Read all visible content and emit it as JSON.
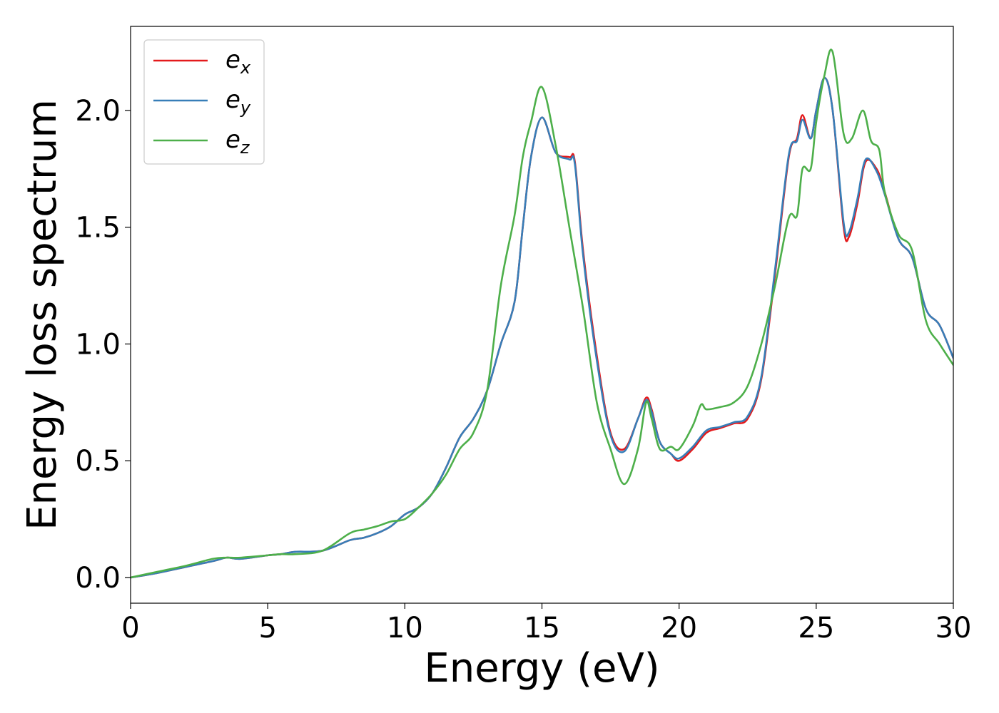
{
  "chart_data": {
    "type": "line",
    "title": "",
    "xlabel": "Energy (eV)",
    "ylabel": "Energy loss spectrum",
    "xlim": [
      0,
      30
    ],
    "ylim": [
      -0.11,
      2.36
    ],
    "xticks": [
      0,
      5,
      10,
      15,
      20,
      25,
      30
    ],
    "xtick_labels": [
      "0",
      "5",
      "10",
      "15",
      "20",
      "25",
      "30"
    ],
    "yticks": [
      0.0,
      0.5,
      1.0,
      1.5,
      2.0
    ],
    "ytick_labels": [
      "0.0",
      "0.5",
      "1.0",
      "1.5",
      "2.0"
    ],
    "grid": false,
    "legend": {
      "position": "top-left",
      "entries": [
        {
          "base": "e",
          "sub": "x",
          "color": "#e41a1c"
        },
        {
          "base": "e",
          "sub": "y",
          "color": "#377eb8"
        },
        {
          "base": "e",
          "sub": "z",
          "color": "#4daf4a"
        }
      ]
    },
    "series": [
      {
        "color": "#e41a1c",
        "points": [
          [
            0,
            0
          ],
          [
            1,
            0.02
          ],
          [
            2,
            0.045
          ],
          [
            3,
            0.07
          ],
          [
            3.5,
            0.085
          ],
          [
            4,
            0.08
          ],
          [
            5,
            0.095
          ],
          [
            5.5,
            0.1
          ],
          [
            6,
            0.11
          ],
          [
            7,
            0.115
          ],
          [
            8,
            0.16
          ],
          [
            8.5,
            0.17
          ],
          [
            9,
            0.19
          ],
          [
            9.5,
            0.22
          ],
          [
            10,
            0.27
          ],
          [
            10.5,
            0.3
          ],
          [
            11,
            0.36
          ],
          [
            11.5,
            0.47
          ],
          [
            12,
            0.6
          ],
          [
            12.5,
            0.68
          ],
          [
            13,
            0.8
          ],
          [
            13.5,
            1.0
          ],
          [
            14,
            1.18
          ],
          [
            14.3,
            1.5
          ],
          [
            14.6,
            1.8
          ],
          [
            15,
            1.97
          ],
          [
            15.5,
            1.82
          ],
          [
            16,
            1.8
          ],
          [
            16.2,
            1.78
          ],
          [
            16.5,
            1.4
          ],
          [
            17,
            0.95
          ],
          [
            17.5,
            0.62
          ],
          [
            18,
            0.55
          ],
          [
            18.5,
            0.68
          ],
          [
            18.8,
            0.77
          ],
          [
            19,
            0.72
          ],
          [
            19.3,
            0.58
          ],
          [
            19.7,
            0.53
          ],
          [
            20,
            0.5
          ],
          [
            20.5,
            0.55
          ],
          [
            21,
            0.62
          ],
          [
            21.5,
            0.64
          ],
          [
            22,
            0.66
          ],
          [
            22.5,
            0.68
          ],
          [
            23,
            0.85
          ],
          [
            23.5,
            1.3
          ],
          [
            24,
            1.8
          ],
          [
            24.3,
            1.88
          ],
          [
            24.5,
            1.98
          ],
          [
            24.8,
            1.88
          ],
          [
            25,
            2.0
          ],
          [
            25.3,
            2.14
          ],
          [
            25.6,
            2.0
          ],
          [
            26,
            1.5
          ],
          [
            26.2,
            1.46
          ],
          [
            26.5,
            1.6
          ],
          [
            26.8,
            1.78
          ],
          [
            27.2,
            1.75
          ],
          [
            27.5,
            1.65
          ],
          [
            28,
            1.45
          ],
          [
            28.5,
            1.37
          ],
          [
            29,
            1.15
          ],
          [
            29.5,
            1.08
          ],
          [
            30,
            0.94
          ]
        ]
      },
      {
        "color": "#377eb8",
        "points": [
          [
            0,
            0
          ],
          [
            1,
            0.02
          ],
          [
            2,
            0.045
          ],
          [
            3,
            0.07
          ],
          [
            3.5,
            0.085
          ],
          [
            4,
            0.08
          ],
          [
            5,
            0.095
          ],
          [
            5.5,
            0.1
          ],
          [
            6,
            0.11
          ],
          [
            7,
            0.115
          ],
          [
            8,
            0.16
          ],
          [
            8.5,
            0.17
          ],
          [
            9,
            0.19
          ],
          [
            9.5,
            0.22
          ],
          [
            10,
            0.27
          ],
          [
            10.5,
            0.3
          ],
          [
            11,
            0.36
          ],
          [
            11.5,
            0.47
          ],
          [
            12,
            0.6
          ],
          [
            12.5,
            0.68
          ],
          [
            13,
            0.8
          ],
          [
            13.5,
            1.0
          ],
          [
            14,
            1.18
          ],
          [
            14.3,
            1.5
          ],
          [
            14.6,
            1.8
          ],
          [
            15,
            1.97
          ],
          [
            15.5,
            1.82
          ],
          [
            16,
            1.79
          ],
          [
            16.2,
            1.77
          ],
          [
            16.5,
            1.38
          ],
          [
            17,
            0.93
          ],
          [
            17.5,
            0.61
          ],
          [
            18,
            0.54
          ],
          [
            18.5,
            0.68
          ],
          [
            18.8,
            0.76
          ],
          [
            19,
            0.71
          ],
          [
            19.3,
            0.58
          ],
          [
            19.7,
            0.53
          ],
          [
            20,
            0.51
          ],
          [
            20.5,
            0.56
          ],
          [
            21,
            0.63
          ],
          [
            21.5,
            0.645
          ],
          [
            22,
            0.665
          ],
          [
            22.5,
            0.69
          ],
          [
            23,
            0.86
          ],
          [
            23.5,
            1.32
          ],
          [
            24,
            1.81
          ],
          [
            24.3,
            1.87
          ],
          [
            24.5,
            1.96
          ],
          [
            24.8,
            1.88
          ],
          [
            25,
            2.0
          ],
          [
            25.3,
            2.14
          ],
          [
            25.6,
            2.0
          ],
          [
            26,
            1.52
          ],
          [
            26.2,
            1.48
          ],
          [
            26.5,
            1.62
          ],
          [
            26.8,
            1.79
          ],
          [
            27.2,
            1.74
          ],
          [
            27.5,
            1.64
          ],
          [
            28,
            1.45
          ],
          [
            28.5,
            1.37
          ],
          [
            29,
            1.15
          ],
          [
            29.5,
            1.08
          ],
          [
            30,
            0.94
          ]
        ]
      },
      {
        "color": "#4daf4a",
        "points": [
          [
            0,
            0
          ],
          [
            1,
            0.025
          ],
          [
            2,
            0.05
          ],
          [
            3,
            0.08
          ],
          [
            3.5,
            0.085
          ],
          [
            4,
            0.085
          ],
          [
            5,
            0.095
          ],
          [
            5.5,
            0.1
          ],
          [
            6,
            0.1
          ],
          [
            7,
            0.115
          ],
          [
            8,
            0.19
          ],
          [
            8.5,
            0.205
          ],
          [
            9,
            0.22
          ],
          [
            9.5,
            0.24
          ],
          [
            10,
            0.25
          ],
          [
            10.5,
            0.3
          ],
          [
            11,
            0.36
          ],
          [
            11.5,
            0.44
          ],
          [
            12,
            0.55
          ],
          [
            12.5,
            0.62
          ],
          [
            13,
            0.8
          ],
          [
            13.5,
            1.25
          ],
          [
            14,
            1.55
          ],
          [
            14.3,
            1.8
          ],
          [
            14.6,
            1.95
          ],
          [
            15,
            2.1
          ],
          [
            15.5,
            1.85
          ],
          [
            16,
            1.5
          ],
          [
            16.5,
            1.15
          ],
          [
            17,
            0.75
          ],
          [
            17.5,
            0.55
          ],
          [
            18,
            0.4
          ],
          [
            18.5,
            0.55
          ],
          [
            18.8,
            0.75
          ],
          [
            19,
            0.68
          ],
          [
            19.3,
            0.55
          ],
          [
            19.7,
            0.56
          ],
          [
            20,
            0.55
          ],
          [
            20.5,
            0.65
          ],
          [
            20.8,
            0.74
          ],
          [
            21,
            0.72
          ],
          [
            21.5,
            0.73
          ],
          [
            22,
            0.75
          ],
          [
            22.5,
            0.82
          ],
          [
            23,
            1.0
          ],
          [
            23.5,
            1.25
          ],
          [
            24,
            1.54
          ],
          [
            24.3,
            1.55
          ],
          [
            24.5,
            1.75
          ],
          [
            24.8,
            1.75
          ],
          [
            25,
            1.95
          ],
          [
            25.3,
            2.15
          ],
          [
            25.6,
            2.25
          ],
          [
            26,
            1.9
          ],
          [
            26.3,
            1.88
          ],
          [
            26.7,
            2.0
          ],
          [
            27,
            1.87
          ],
          [
            27.3,
            1.83
          ],
          [
            27.5,
            1.65
          ],
          [
            28,
            1.47
          ],
          [
            28.5,
            1.4
          ],
          [
            29,
            1.1
          ],
          [
            29.5,
            1.0
          ],
          [
            30,
            0.91
          ]
        ]
      }
    ]
  }
}
